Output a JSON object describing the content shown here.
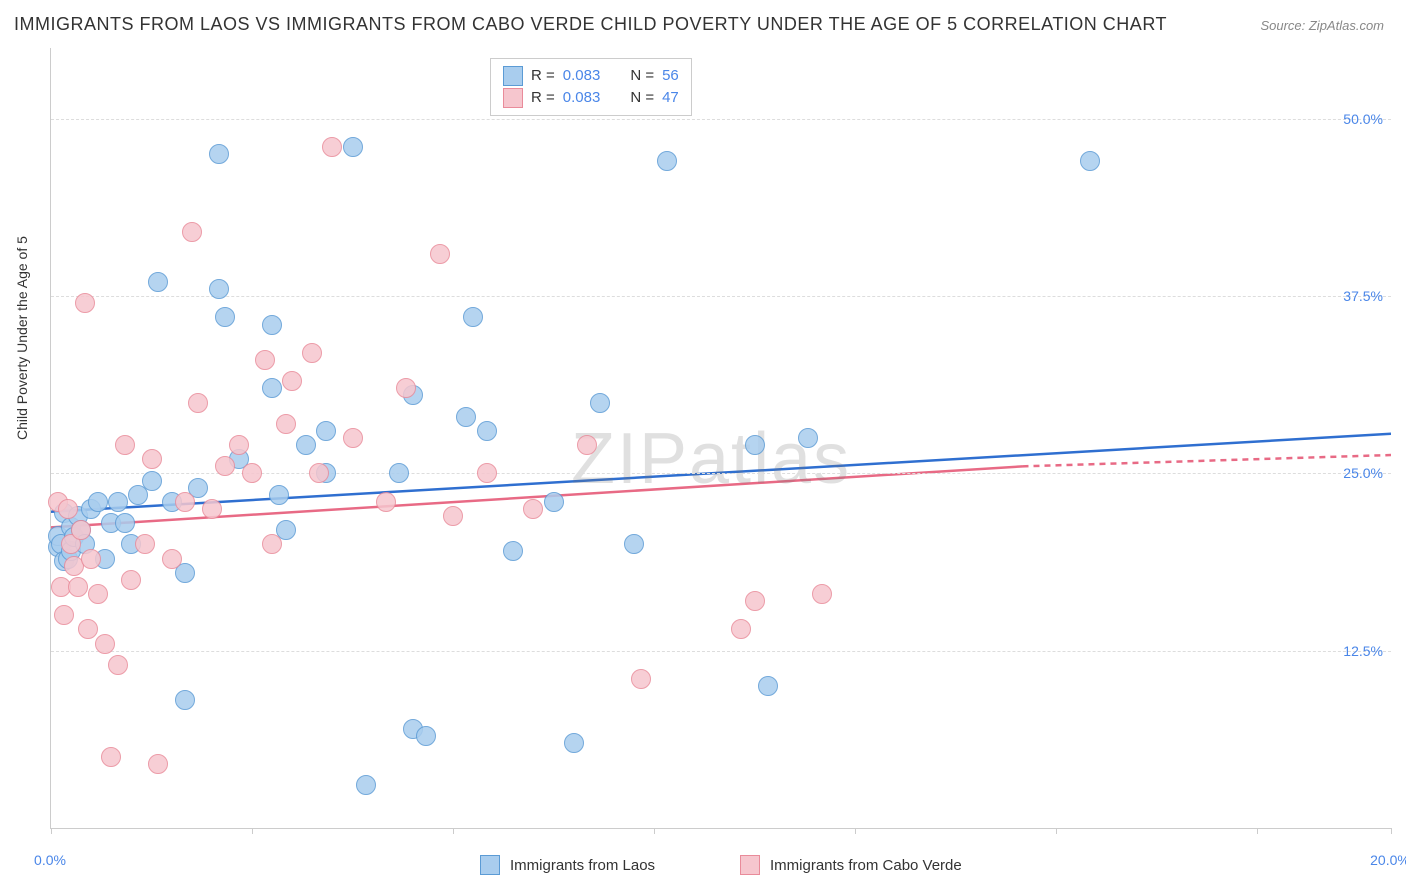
{
  "title": "IMMIGRANTS FROM LAOS VS IMMIGRANTS FROM CABO VERDE CHILD POVERTY UNDER THE AGE OF 5 CORRELATION CHART",
  "source_label": "Source: ZipAtlas.com",
  "ylabel": "Child Poverty Under the Age of 5",
  "watermark_a": "ZIP",
  "watermark_b": "atlas",
  "chart": {
    "type": "scatter",
    "xlim": [
      0,
      20
    ],
    "ylim": [
      0,
      55
    ],
    "xticks": [
      0,
      3,
      6,
      9,
      12,
      15,
      18,
      20
    ],
    "xtick_labels": {
      "0": "0.0%",
      "20": "20.0%"
    },
    "yticks": [
      12.5,
      25.0,
      37.5,
      50.0
    ],
    "ytick_labels": [
      "12.5%",
      "25.0%",
      "37.5%",
      "50.0%"
    ],
    "grid_color": "#dddddd",
    "axis_color": "#cccccc",
    "background_color": "#ffffff",
    "point_radius": 9,
    "series": [
      {
        "key": "laos",
        "label": "Immigrants from Laos",
        "fill_color": "#a9cdee",
        "stroke_color": "#5b9bd5",
        "trend_color": "#2f6fd0",
        "trend": {
          "x0": 0,
          "y0": 22.3,
          "x1": 20,
          "y1": 27.8
        },
        "r_value": "0.083",
        "n_value": "56",
        "points": [
          [
            0.1,
            19.8
          ],
          [
            0.1,
            20.6
          ],
          [
            0.15,
            20.0
          ],
          [
            0.2,
            22.2
          ],
          [
            0.2,
            18.8
          ],
          [
            0.25,
            19.0
          ],
          [
            0.3,
            21.2
          ],
          [
            0.3,
            19.5
          ],
          [
            0.35,
            20.5
          ],
          [
            0.4,
            22.0
          ],
          [
            0.45,
            21.0
          ],
          [
            0.5,
            20.0
          ],
          [
            0.6,
            22.5
          ],
          [
            0.7,
            23.0
          ],
          [
            0.8,
            19.0
          ],
          [
            0.9,
            21.5
          ],
          [
            1.0,
            23.0
          ],
          [
            1.1,
            21.5
          ],
          [
            1.2,
            20.0
          ],
          [
            1.3,
            23.5
          ],
          [
            1.5,
            24.5
          ],
          [
            1.6,
            38.5
          ],
          [
            1.8,
            23.0
          ],
          [
            2.0,
            18.0
          ],
          [
            2.0,
            9.0
          ],
          [
            2.2,
            24.0
          ],
          [
            2.5,
            47.5
          ],
          [
            2.5,
            38.0
          ],
          [
            2.6,
            36.0
          ],
          [
            2.8,
            26.0
          ],
          [
            3.3,
            35.5
          ],
          [
            3.3,
            31.0
          ],
          [
            3.4,
            23.5
          ],
          [
            3.5,
            21.0
          ],
          [
            3.8,
            27.0
          ],
          [
            4.1,
            28.0
          ],
          [
            4.1,
            25.0
          ],
          [
            4.5,
            48.0
          ],
          [
            4.7,
            3.0
          ],
          [
            5.2,
            25.0
          ],
          [
            5.4,
            30.5
          ],
          [
            5.4,
            7.0
          ],
          [
            5.6,
            6.5
          ],
          [
            6.2,
            29.0
          ],
          [
            6.3,
            36.0
          ],
          [
            6.5,
            28.0
          ],
          [
            6.9,
            19.5
          ],
          [
            7.5,
            23.0
          ],
          [
            7.8,
            6.0
          ],
          [
            8.2,
            30.0
          ],
          [
            8.7,
            20.0
          ],
          [
            9.2,
            47.0
          ],
          [
            10.5,
            27.0
          ],
          [
            10.7,
            10.0
          ],
          [
            11.3,
            27.5
          ],
          [
            15.5,
            47.0
          ]
        ]
      },
      {
        "key": "cabo",
        "label": "Immigrants from Cabo Verde",
        "fill_color": "#f6c6ce",
        "stroke_color": "#e98b9a",
        "trend_color": "#e86a85",
        "trend": {
          "x0": 0,
          "y0": 21.2,
          "x1": 14.5,
          "y1": 25.5
        },
        "trend_extend": {
          "x0": 14.5,
          "y0": 25.5,
          "x1": 20,
          "y1": 26.3
        },
        "r_value": "0.083",
        "n_value": "47",
        "points": [
          [
            0.1,
            23.0
          ],
          [
            0.15,
            17.0
          ],
          [
            0.2,
            15.0
          ],
          [
            0.25,
            22.5
          ],
          [
            0.3,
            20.0
          ],
          [
            0.35,
            18.5
          ],
          [
            0.4,
            17.0
          ],
          [
            0.45,
            21.0
          ],
          [
            0.5,
            37.0
          ],
          [
            0.55,
            14.0
          ],
          [
            0.6,
            19.0
          ],
          [
            0.7,
            16.5
          ],
          [
            0.8,
            13.0
          ],
          [
            0.9,
            5.0
          ],
          [
            1.0,
            11.5
          ],
          [
            1.1,
            27.0
          ],
          [
            1.2,
            17.5
          ],
          [
            1.4,
            20.0
          ],
          [
            1.5,
            26.0
          ],
          [
            1.6,
            4.5
          ],
          [
            1.8,
            19.0
          ],
          [
            2.0,
            23.0
          ],
          [
            2.1,
            42.0
          ],
          [
            2.2,
            30.0
          ],
          [
            2.4,
            22.5
          ],
          [
            2.6,
            25.5
          ],
          [
            2.8,
            27.0
          ],
          [
            3.0,
            25.0
          ],
          [
            3.2,
            33.0
          ],
          [
            3.3,
            20.0
          ],
          [
            3.5,
            28.5
          ],
          [
            3.6,
            31.5
          ],
          [
            3.9,
            33.5
          ],
          [
            4.0,
            25.0
          ],
          [
            4.2,
            48.0
          ],
          [
            4.5,
            27.5
          ],
          [
            5.0,
            23.0
          ],
          [
            5.3,
            31.0
          ],
          [
            5.8,
            40.5
          ],
          [
            6.0,
            22.0
          ],
          [
            6.5,
            25.0
          ],
          [
            7.2,
            22.5
          ],
          [
            8.0,
            27.0
          ],
          [
            8.8,
            10.5
          ],
          [
            10.3,
            14.0
          ],
          [
            10.5,
            16.0
          ],
          [
            11.5,
            16.5
          ]
        ]
      }
    ]
  },
  "legend_top": {
    "r_label": "R =",
    "n_label": "N ="
  },
  "legend_bottom": {
    "items": [
      {
        "series": "laos"
      },
      {
        "series": "cabo"
      }
    ]
  }
}
